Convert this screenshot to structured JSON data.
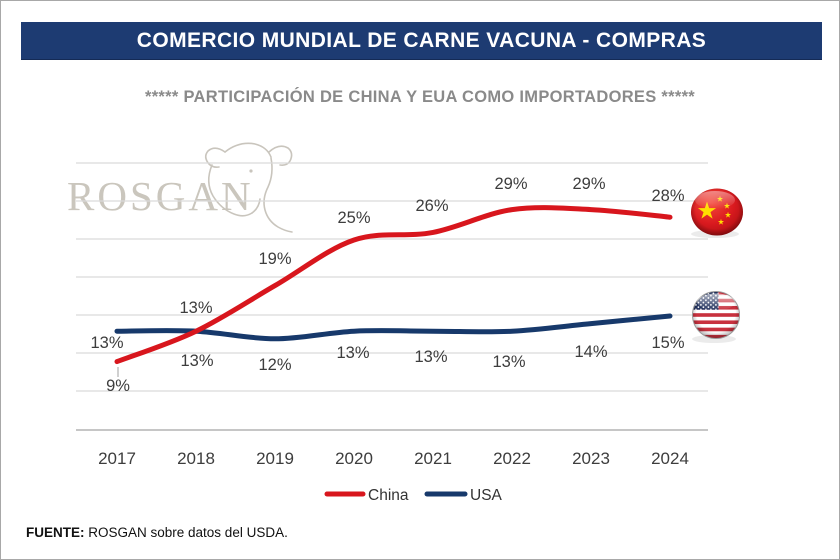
{
  "header": {
    "title": "COMERCIO MUNDIAL DE CARNE VACUNA - COMPRAS"
  },
  "subtitle": "***** PARTICIPACIÓN DE CHINA Y EUA COMO IMPORTADORES *****",
  "logo": {
    "text": "ROSGAN",
    "icon": "cow-head-icon"
  },
  "chart_data": {
    "type": "line",
    "title": "PARTICIPACIÓN DE CHINA Y EUA COMO IMPORTADORES",
    "categories": [
      "2017",
      "2018",
      "2019",
      "2020",
      "2021",
      "2022",
      "2023",
      "2024"
    ],
    "series": [
      {
        "name": "China",
        "color": "#d8161d",
        "values": [
          9,
          13,
          19,
          25,
          26,
          29,
          29,
          28
        ],
        "labels": [
          "9%",
          "13%",
          "19%",
          "25%",
          "26%",
          "29%",
          "29%",
          "28%"
        ],
        "flag": "china-flag"
      },
      {
        "name": "USA",
        "color": "#17396b",
        "values": [
          13,
          13,
          12,
          13,
          13,
          13,
          14,
          15
        ],
        "labels": [
          "13%",
          "13%",
          "12%",
          "13%",
          "13%",
          "13%",
          "14%",
          "15%"
        ],
        "flag": "usa-flag"
      }
    ],
    "xlabel": "",
    "ylabel": "",
    "ylim": [
      0,
      35
    ],
    "grid": true,
    "gridline_step_pct": 5,
    "legend_position": "bottom"
  },
  "footer": {
    "label": "FUENTE:",
    "text": " ROSGAN sobre datos del USDA."
  },
  "colors": {
    "header_bg": "#1d3b72",
    "subtitle_text": "#8a8a8a",
    "gridline": "#dadada",
    "axis_line": "#c6c6c6",
    "data_label": "#3d3d3d"
  }
}
